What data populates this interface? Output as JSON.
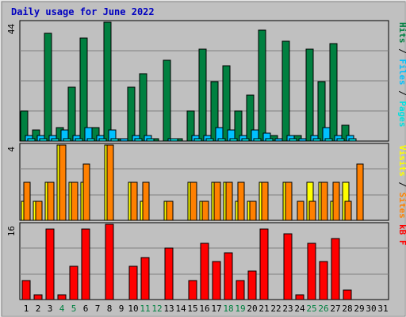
{
  "chart_data": [
    {
      "type": "bar",
      "title": "Daily usage for June 2022",
      "x": [
        "1",
        "2",
        "3",
        "4",
        "5",
        "6",
        "7",
        "8",
        "9",
        "10",
        "11",
        "12",
        "13",
        "14",
        "15",
        "16",
        "17",
        "18",
        "19",
        "20",
        "21",
        "22",
        "23",
        "24",
        "25",
        "26",
        "27",
        "28",
        "29",
        "30",
        "31"
      ],
      "weekend_days": [
        4,
        5,
        11,
        12,
        18,
        19,
        25,
        26
      ],
      "panels": [
        {
          "id": "pages-files-hits",
          "ylabel_parts": [
            "Pages",
            "Files",
            "Hits"
          ],
          "ymax_label": "44",
          "ymax": 44,
          "series": [
            {
              "name": "Hits",
              "color": "#008040",
              "values": [
                11,
                4,
                40,
                5,
                20,
                38,
                5,
                44,
                1,
                20,
                25,
                1,
                30,
                1,
                11,
                34,
                22,
                28,
                11,
                17,
                41,
                2,
                37,
                2,
                34,
                22,
                36,
                6,
                0,
                0,
                0
              ]
            },
            {
              "name": "Files",
              "color": "#00C0FF",
              "values": [
                2,
                2,
                2,
                4,
                2,
                5,
                2,
                4,
                1,
                2,
                2,
                0,
                1,
                0,
                2,
                2,
                5,
                4,
                2,
                4,
                3,
                1,
                2,
                1,
                2,
                5,
                2,
                2,
                0,
                0,
                0
              ]
            },
            {
              "name": "Pages",
              "color": "#00E0E0",
              "values": [
                1,
                1,
                1,
                1,
                1,
                1,
                1,
                1,
                0,
                1,
                1,
                0,
                1,
                0,
                1,
                1,
                1,
                1,
                1,
                1,
                1,
                0,
                1,
                0,
                1,
                1,
                1,
                1,
                0,
                0,
                0
              ]
            }
          ]
        },
        {
          "id": "visits-sites",
          "ylabel_parts": [
            "Sites",
            "Visits"
          ],
          "ymax_label": "4",
          "ymax": 4,
          "series": [
            {
              "name": "Visits",
              "color": "#FFFF00",
              "values": [
                1,
                1,
                2,
                4,
                2,
                2,
                0,
                4,
                0,
                2,
                1,
                0,
                1,
                0,
                2,
                1,
                2,
                2,
                1,
                1,
                2,
                0,
                2,
                0,
                2,
                2,
                1,
                2,
                0,
                0,
                0
              ]
            },
            {
              "name": "Sites",
              "color": "#FF8000",
              "values": [
                2,
                1,
                2,
                4,
                2,
                3,
                0,
                4,
                0,
                2,
                2,
                0,
                1,
                0,
                2,
                1,
                2,
                2,
                2,
                1,
                2,
                0,
                2,
                1,
                1,
                2,
                2,
                1,
                3,
                0,
                0
              ]
            }
          ]
        },
        {
          "id": "kbytes",
          "ylabel_parts": [
            "kB F"
          ],
          "ymax_label": "16",
          "ymax": 16,
          "series": [
            {
              "name": "kB F",
              "color": "#FF0000",
              "values": [
                4,
                1,
                15,
                1,
                7,
                15,
                0,
                16,
                0,
                7,
                9,
                0,
                11,
                0,
                4,
                12,
                8,
                10,
                4,
                6,
                15,
                0,
                14,
                1,
                12,
                8,
                13,
                2,
                0,
                0,
                0
              ]
            }
          ]
        }
      ]
    }
  ]
}
